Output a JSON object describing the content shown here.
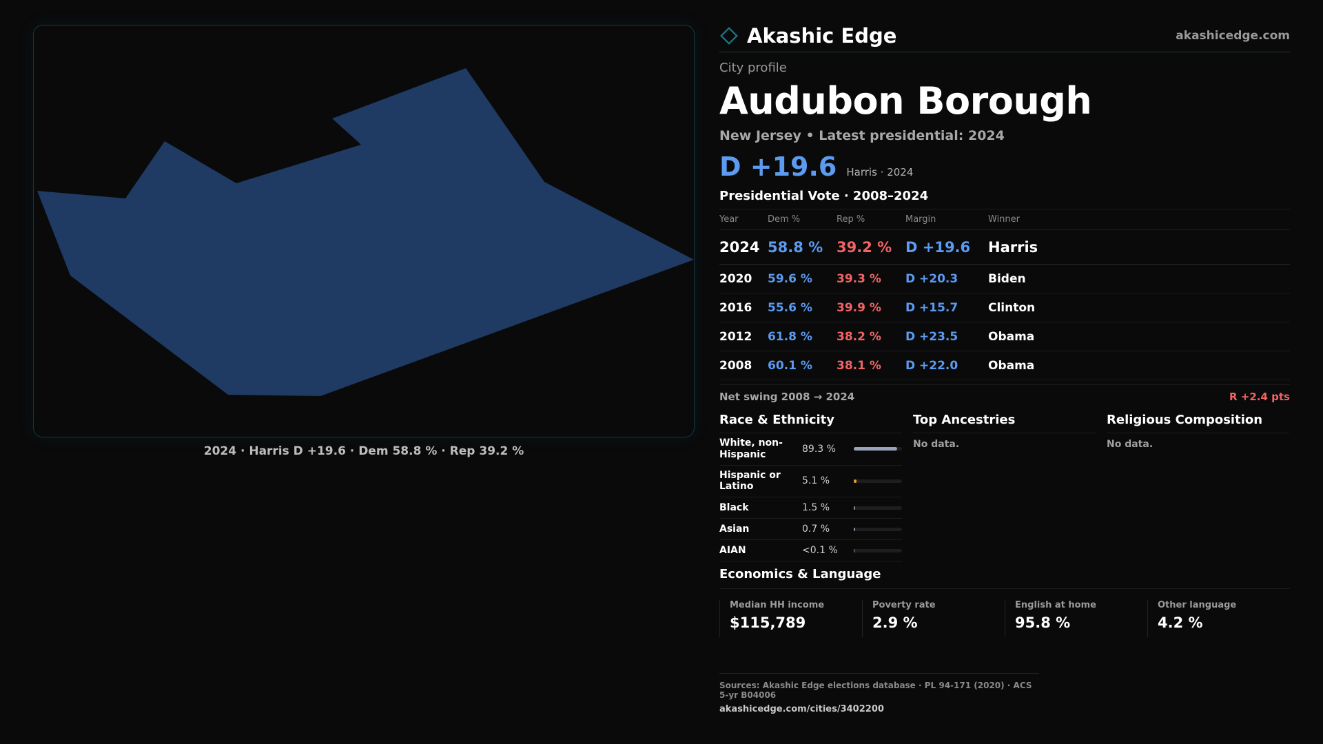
{
  "brand": {
    "name": "Akashic Edge",
    "url": "akashicedge.com",
    "accent": "#1a7a85"
  },
  "map": {
    "fill": "#1f3a63",
    "caption": "2024 · Harris D +19.6 · Dem 58.8 % · Rep 39.2 %"
  },
  "profile": {
    "eyebrow": "City profile",
    "title": "Audubon Borough",
    "subtitle": "New Jersey • Latest presidential: 2024",
    "headline_margin": "D +19.6",
    "headline_note": "Harris · 2024"
  },
  "vote": {
    "title": "Presidential Vote · 2008–2024",
    "headers": [
      "Year",
      "Dem %",
      "Rep %",
      "Margin",
      "Winner"
    ],
    "rows": [
      {
        "year": "2024",
        "dem": "58.8 %",
        "rep": "39.2 %",
        "margin": "D +19.6",
        "winner": "Harris"
      },
      {
        "year": "2020",
        "dem": "59.6 %",
        "rep": "39.3 %",
        "margin": "D +20.3",
        "winner": "Biden"
      },
      {
        "year": "2016",
        "dem": "55.6 %",
        "rep": "39.9 %",
        "margin": "D +15.7",
        "winner": "Clinton"
      },
      {
        "year": "2012",
        "dem": "61.8 %",
        "rep": "38.2 %",
        "margin": "D +23.5",
        "winner": "Obama"
      },
      {
        "year": "2008",
        "dem": "60.1 %",
        "rep": "38.1 %",
        "margin": "D +22.0",
        "winner": "Obama"
      }
    ],
    "swing_label": "Net swing 2008 → 2024",
    "swing_value": "R +2.4 pts"
  },
  "race": {
    "title": "Race & Ethnicity",
    "rows": [
      {
        "label": "White, non-Hispanic",
        "pct": "89.3 %",
        "share": 0.893,
        "color": "#9aa3b8"
      },
      {
        "label": "Hispanic or Latino",
        "pct": "5.1 %",
        "share": 0.051,
        "color": "#e89a2c"
      },
      {
        "label": "Black",
        "pct": "1.5 %",
        "share": 0.015,
        "color": "#8a8fa0"
      },
      {
        "label": "Asian",
        "pct": "0.7 %",
        "share": 0.007,
        "color": "#8a8fa0"
      },
      {
        "label": "AIAN",
        "pct": "<0.1 %",
        "share": 0.0,
        "color": "#8a8fa0"
      }
    ]
  },
  "ancestries": {
    "title": "Top Ancestries",
    "empty": "No data."
  },
  "religion": {
    "title": "Religious Composition",
    "empty": "No data."
  },
  "economics": {
    "title": "Economics & Language",
    "cells": [
      {
        "label": "Median HH income",
        "value": "$115,789"
      },
      {
        "label": "Poverty rate",
        "value": "2.9 %"
      },
      {
        "label": "English at home",
        "value": "95.8 %"
      },
      {
        "label": "Other language",
        "value": "4.2 %"
      }
    ]
  },
  "sources": {
    "line": "Sources: Akashic Edge elections database · PL 94-171 (2020) · ACS 5-yr B04006",
    "url": "akashicedge.com/cities/3402200"
  }
}
